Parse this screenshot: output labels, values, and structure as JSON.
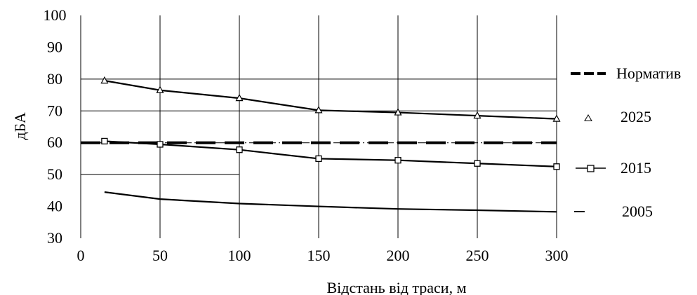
{
  "chart_data": {
    "type": "line",
    "title": "",
    "xlabel": "Відстань від траси, м",
    "ylabel": "дБА",
    "xlim": [
      0,
      300
    ],
    "ylim": [
      30,
      100
    ],
    "xticks": [
      0,
      50,
      100,
      150,
      200,
      250,
      300
    ],
    "yticks": [
      30,
      40,
      50,
      60,
      70,
      80,
      90,
      100
    ],
    "grid": true,
    "legend_position": "right",
    "series": [
      {
        "name": "Норматив",
        "style": "dashed",
        "marker": "none",
        "x": [
          0,
          300
        ],
        "y": [
          60,
          60
        ]
      },
      {
        "name": "2025",
        "style": "solid",
        "marker": "triangle",
        "x": [
          15,
          50,
          100,
          150,
          200,
          250,
          300
        ],
        "y": [
          79.5,
          76.5,
          74,
          70.2,
          69.5,
          68.5,
          67.5
        ]
      },
      {
        "name": "2015",
        "style": "solid",
        "marker": "square",
        "x": [
          15,
          50,
          100,
          150,
          200,
          250,
          300
        ],
        "y": [
          60.5,
          59.5,
          57.8,
          55,
          54.5,
          53.5,
          52.5
        ]
      },
      {
        "name": "2005",
        "style": "solid",
        "marker": "none",
        "x": [
          15,
          50,
          100,
          150,
          200,
          250,
          300
        ],
        "y": [
          44.5,
          42.3,
          40.9,
          40,
          39.2,
          38.8,
          38.3
        ]
      }
    ],
    "colors": {
      "line": "#000000",
      "grid": "#000000",
      "background": "#ffffff"
    }
  }
}
